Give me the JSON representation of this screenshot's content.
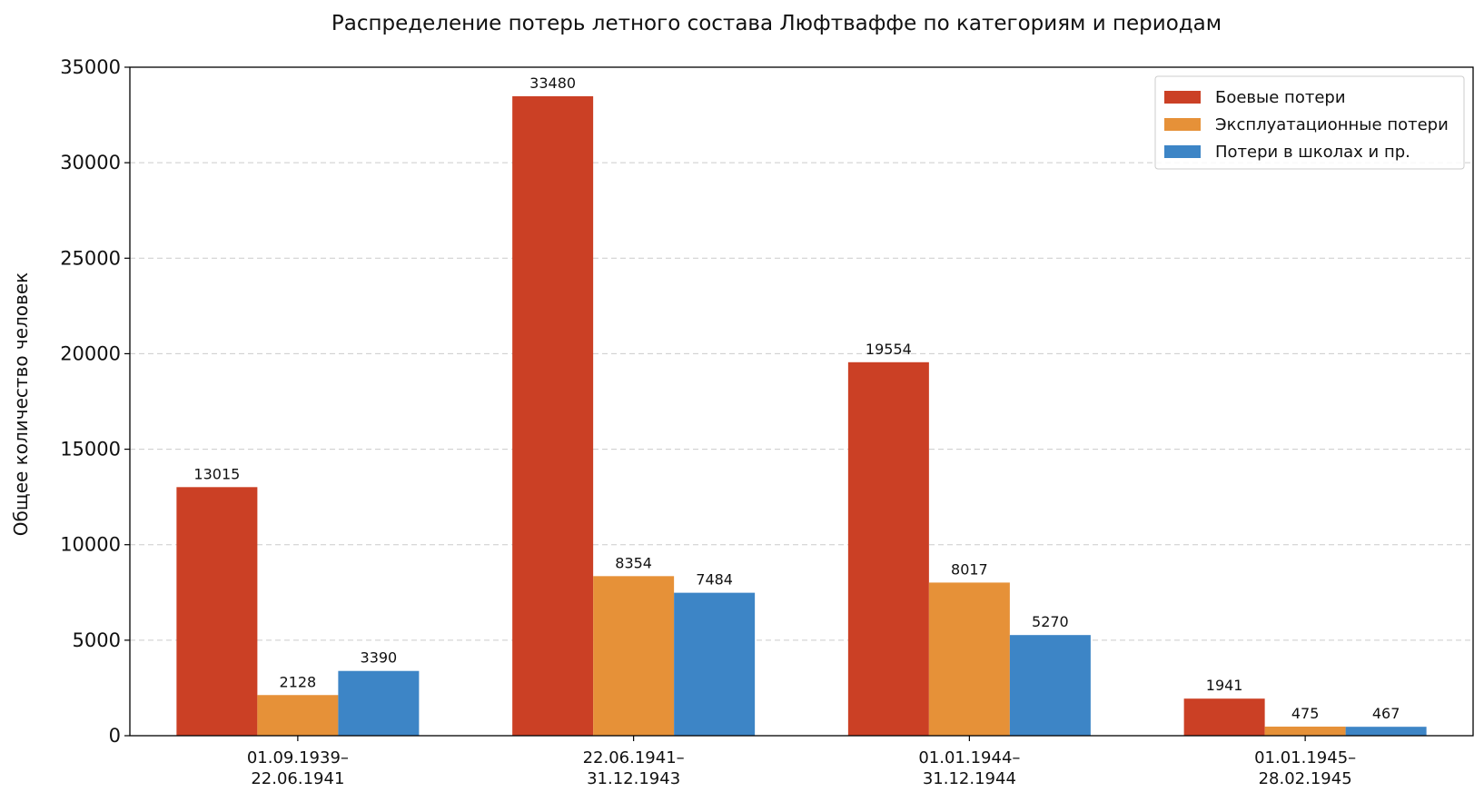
{
  "chart_data": {
    "type": "bar",
    "title": "Распределение потерь летного состава Люфтваффе по категориям и периодам",
    "xlabel": "",
    "ylabel": "Общее количество человек",
    "categories": [
      [
        "01.09.1939–",
        "22.06.1941"
      ],
      [
        "22.06.1941–",
        "31.12.1943"
      ],
      [
        "01.01.1944–",
        "31.12.1944"
      ],
      [
        "01.01.1945–",
        "28.02.1945"
      ]
    ],
    "series": [
      {
        "name": "Боевые потери",
        "color": "#cb4025",
        "values": [
          13015,
          33480,
          19554,
          1941
        ]
      },
      {
        "name": "Эксплуатационные потери",
        "color": "#e69138",
        "values": [
          2128,
          8354,
          8017,
          475
        ]
      },
      {
        "name": "Потери в школах и пр.",
        "color": "#3d85c6",
        "values": [
          3390,
          7484,
          5270,
          467
        ]
      }
    ],
    "ylim": [
      0,
      35000
    ],
    "yticks": [
      0,
      5000,
      10000,
      15000,
      20000,
      25000,
      30000,
      35000
    ],
    "grid": "y-dashed",
    "legend": "top-right"
  }
}
